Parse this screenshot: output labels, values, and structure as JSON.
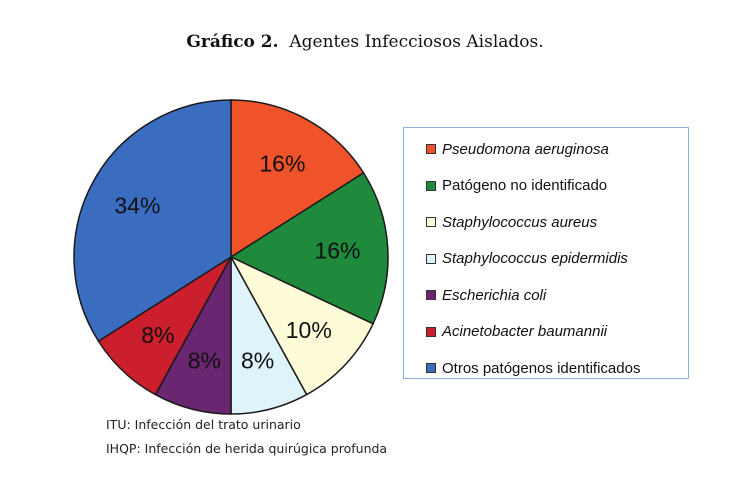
{
  "header": {
    "label": "Gráfico 2.",
    "text": "Agentes Infecciosos Aislados."
  },
  "chart_data": {
    "type": "pie",
    "categories": [
      "Pseudomona aeruginosa",
      "Patógeno no identificado",
      "Staphylococcus aureus",
      "Staphylococcus epidermidis",
      "Escherichia coli",
      "Acinetobacter baumannii",
      "Otros patógenos identificados"
    ],
    "values": [
      16,
      16,
      10,
      8,
      8,
      8,
      34
    ],
    "value_labels": [
      "16%",
      "16%",
      "10%",
      "8%",
      "8%",
      "8%",
      "34%"
    ],
    "colors": [
      "#f0532a",
      "#1f8a3c",
      "#fdfbd8",
      "#dff3fb",
      "#6b2672",
      "#cc1f2d",
      "#3a6cc0"
    ],
    "italic": [
      true,
      false,
      true,
      true,
      true,
      true,
      false
    ],
    "legend_position": "right"
  },
  "notes": [
    "ITU: Infección del trato urinario",
    "IHQP: Infección de herida quirúgica profunda"
  ]
}
